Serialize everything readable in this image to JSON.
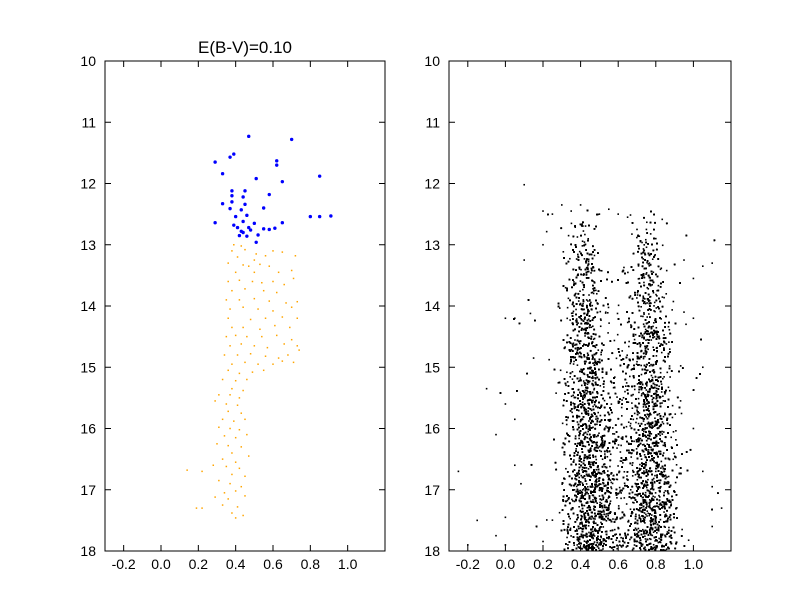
{
  "chart_data": [
    {
      "type": "scatter",
      "title": "E(B-V)=0.10",
      "xlim": [
        -0.3,
        1.2
      ],
      "ylim": [
        18,
        10
      ],
      "y_inverted": true,
      "xticks": [
        -0.2,
        0.0,
        0.2,
        0.4,
        0.6,
        0.8,
        1.0
      ],
      "xtick_labels": [
        "-0.2",
        "0.0",
        "0.2",
        "0.4",
        "0.6",
        "0.8",
        "1.0"
      ],
      "yticks": [
        10,
        11,
        12,
        13,
        14,
        15,
        16,
        17,
        18
      ],
      "ytick_labels": [
        "10",
        "11",
        "12",
        "13",
        "14",
        "15",
        "16",
        "17",
        "18"
      ],
      "grid": false,
      "series": [
        {
          "color": "#0000ff",
          "marker_size": 2.6,
          "points": [
            [
              0.47,
              11.23
            ],
            [
              0.7,
              11.28
            ],
            [
              0.39,
              11.52
            ],
            [
              0.37,
              11.57
            ],
            [
              0.29,
              11.65
            ],
            [
              0.62,
              11.63
            ],
            [
              0.62,
              11.7
            ],
            [
              0.33,
              11.84
            ],
            [
              0.51,
              11.92
            ],
            [
              0.65,
              11.97
            ],
            [
              0.85,
              11.88
            ],
            [
              0.38,
              12.12
            ],
            [
              0.45,
              12.12
            ],
            [
              0.38,
              12.2
            ],
            [
              0.44,
              12.22
            ],
            [
              0.58,
              12.18
            ],
            [
              0.38,
              12.3
            ],
            [
              0.33,
              12.33
            ],
            [
              0.45,
              12.34
            ],
            [
              0.55,
              12.4
            ],
            [
              0.37,
              12.41
            ],
            [
              0.43,
              12.43
            ],
            [
              0.4,
              12.54
            ],
            [
              0.46,
              12.52
            ],
            [
              0.8,
              12.54
            ],
            [
              0.85,
              12.54
            ],
            [
              0.91,
              12.53
            ],
            [
              0.29,
              12.64
            ],
            [
              0.44,
              12.62
            ],
            [
              0.5,
              12.65
            ],
            [
              0.65,
              12.64
            ],
            [
              0.39,
              12.68
            ],
            [
              0.41,
              12.72
            ],
            [
              0.47,
              12.72
            ],
            [
              0.55,
              12.74
            ],
            [
              0.58,
              12.75
            ],
            [
              0.61,
              12.73
            ],
            [
              0.43,
              12.78
            ],
            [
              0.44,
              12.8
            ],
            [
              0.48,
              12.76
            ],
            [
              0.52,
              12.84
            ],
            [
              0.51,
              12.96
            ],
            [
              0.42,
              12.85
            ],
            [
              0.46,
              12.86
            ]
          ]
        },
        {
          "color": "#ffa500",
          "marker_size": 1.5,
          "points": [
            [
              0.39,
              13.0
            ],
            [
              0.43,
              13.02
            ],
            [
              0.38,
              13.1
            ],
            [
              0.45,
              13.08
            ],
            [
              0.51,
              13.15
            ],
            [
              0.41,
              13.2
            ],
            [
              0.5,
              13.25
            ],
            [
              0.56,
              13.18
            ],
            [
              0.6,
              13.1
            ],
            [
              0.65,
              13.12
            ],
            [
              0.72,
              13.18
            ],
            [
              0.36,
              13.3
            ],
            [
              0.44,
              13.33
            ],
            [
              0.47,
              13.35
            ],
            [
              0.53,
              13.32
            ],
            [
              0.58,
              13.35
            ],
            [
              0.4,
              13.45
            ],
            [
              0.5,
              13.45
            ],
            [
              0.63,
              13.45
            ],
            [
              0.7,
              13.42
            ],
            [
              0.36,
              13.6
            ],
            [
              0.42,
              13.58
            ],
            [
              0.49,
              13.6
            ],
            [
              0.54,
              13.62
            ],
            [
              0.6,
              13.6
            ],
            [
              0.66,
              13.65
            ],
            [
              0.71,
              13.55
            ],
            [
              0.38,
              13.75
            ],
            [
              0.45,
              13.72
            ],
            [
              0.55,
              13.75
            ],
            [
              0.62,
              13.78
            ],
            [
              0.35,
              13.9
            ],
            [
              0.42,
              13.9
            ],
            [
              0.5,
              13.88
            ],
            [
              0.58,
              13.92
            ],
            [
              0.67,
              13.95
            ],
            [
              0.73,
              13.93
            ],
            [
              0.37,
              14.05
            ],
            [
              0.44,
              14.02
            ],
            [
              0.52,
              14.05
            ],
            [
              0.6,
              14.08
            ],
            [
              0.7,
              14.02
            ],
            [
              0.36,
              14.2
            ],
            [
              0.48,
              14.22
            ],
            [
              0.56,
              14.2
            ],
            [
              0.65,
              14.18
            ],
            [
              0.73,
              14.2
            ],
            [
              0.38,
              14.35
            ],
            [
              0.44,
              14.35
            ],
            [
              0.53,
              14.38
            ],
            [
              0.61,
              14.32
            ],
            [
              0.69,
              14.35
            ],
            [
              0.35,
              14.5
            ],
            [
              0.4,
              14.48
            ],
            [
              0.46,
              14.5
            ],
            [
              0.54,
              14.5
            ],
            [
              0.62,
              14.48
            ],
            [
              0.7,
              14.55
            ],
            [
              0.37,
              14.65
            ],
            [
              0.43,
              14.62
            ],
            [
              0.5,
              14.65
            ],
            [
              0.57,
              14.68
            ],
            [
              0.66,
              14.62
            ],
            [
              0.73,
              14.65
            ],
            [
              0.34,
              14.8
            ],
            [
              0.41,
              14.8
            ],
            [
              0.48,
              14.78
            ],
            [
              0.56,
              14.82
            ],
            [
              0.63,
              14.85
            ],
            [
              0.68,
              14.8
            ],
            [
              0.74,
              14.72
            ],
            [
              0.38,
              14.95
            ],
            [
              0.45,
              14.92
            ],
            [
              0.52,
              14.95
            ],
            [
              0.6,
              14.95
            ],
            [
              0.65,
              14.9
            ],
            [
              0.71,
              14.92
            ],
            [
              0.36,
              15.05
            ],
            [
              0.42,
              15.1
            ],
            [
              0.49,
              15.08
            ],
            [
              0.55,
              15.05
            ],
            [
              0.33,
              15.2
            ],
            [
              0.4,
              15.22
            ],
            [
              0.46,
              15.2
            ],
            [
              0.38,
              15.35
            ],
            [
              0.44,
              15.38
            ],
            [
              0.31,
              15.45
            ],
            [
              0.37,
              15.45
            ],
            [
              0.42,
              15.5
            ],
            [
              0.29,
              15.55
            ],
            [
              0.35,
              15.6
            ],
            [
              0.41,
              15.62
            ],
            [
              0.36,
              15.72
            ],
            [
              0.43,
              15.75
            ],
            [
              0.33,
              15.85
            ],
            [
              0.39,
              15.88
            ],
            [
              0.45,
              15.85
            ],
            [
              0.31,
              15.98
            ],
            [
              0.37,
              16.0
            ],
            [
              0.42,
              16.02
            ],
            [
              0.34,
              16.12
            ],
            [
              0.4,
              16.15
            ],
            [
              0.46,
              16.1
            ],
            [
              0.3,
              16.25
            ],
            [
              0.36,
              16.28
            ],
            [
              0.43,
              16.3
            ],
            [
              0.38,
              16.4
            ],
            [
              0.47,
              16.45
            ],
            [
              0.33,
              16.5
            ],
            [
              0.4,
              16.55
            ],
            [
              0.28,
              16.6
            ],
            [
              0.35,
              16.62
            ],
            [
              0.42,
              16.65
            ],
            [
              0.14,
              16.68
            ],
            [
              0.22,
              16.7
            ],
            [
              0.38,
              16.75
            ],
            [
              0.45,
              16.78
            ],
            [
              0.31,
              16.85
            ],
            [
              0.37,
              16.9
            ],
            [
              0.43,
              16.95
            ],
            [
              0.34,
              17.05
            ],
            [
              0.4,
              17.02
            ],
            [
              0.29,
              17.12
            ],
            [
              0.36,
              17.15
            ],
            [
              0.45,
              17.1
            ],
            [
              0.33,
              17.25
            ],
            [
              0.41,
              17.28
            ],
            [
              0.19,
              17.3
            ],
            [
              0.22,
              17.3
            ],
            [
              0.38,
              17.38
            ],
            [
              0.44,
              17.42
            ],
            [
              0.4,
              17.46
            ]
          ]
        }
      ]
    },
    {
      "type": "scatter",
      "title": "",
      "xlim": [
        -0.3,
        1.2
      ],
      "ylim": [
        18,
        10
      ],
      "y_inverted": true,
      "xticks": [
        -0.2,
        0.0,
        0.2,
        0.4,
        0.6,
        0.8,
        1.0
      ],
      "xtick_labels": [
        "-0.2",
        "0.0",
        "0.2",
        "0.4",
        "0.6",
        "0.8",
        "1.0"
      ],
      "yticks": [
        10,
        11,
        12,
        13,
        14,
        15,
        16,
        17,
        18
      ],
      "ytick_labels": [
        "10",
        "11",
        "12",
        "13",
        "14",
        "15",
        "16",
        "17",
        "18"
      ],
      "grid": false,
      "series": [
        {
          "color": "#000000",
          "marker_size": 1.6,
          "description_of_density": "dense cloud",
          "points": [
            [
              0.1,
              12.02
            ],
            [
              -0.15,
              17.5
            ],
            [
              -0.2,
              17.9
            ],
            [
              -0.25,
              16.7
            ],
            [
              -0.05,
              16.1
            ],
            [
              -0.1,
              15.35
            ],
            [
              0.0,
              14.2
            ],
            [
              0.05,
              14.2
            ],
            [
              0.1,
              13.25
            ],
            [
              0.2,
              13.0
            ],
            [
              0.2,
              12.45
            ],
            [
              0.25,
              12.5
            ],
            [
              0.3,
              12.35
            ],
            [
              0.35,
              12.45
            ],
            [
              0.4,
              12.35
            ],
            [
              0.5,
              12.5
            ],
            [
              0.55,
              12.42
            ],
            [
              0.6,
              12.5
            ],
            [
              0.65,
              12.55
            ],
            [
              0.7,
              12.75
            ],
            [
              0.75,
              12.75
            ],
            [
              0.8,
              12.9
            ],
            [
              0.95,
              13.25
            ],
            [
              1.0,
              13.55
            ],
            [
              1.05,
              13.35
            ],
            [
              1.1,
              13.3
            ],
            [
              0.95,
              14.1
            ],
            [
              1.0,
              14.2
            ],
            [
              1.05,
              15.0
            ],
            [
              1.0,
              16.0
            ],
            [
              1.05,
              16.7
            ],
            [
              1.1,
              16.95
            ],
            [
              1.15,
              17.3
            ],
            [
              1.1,
              17.6
            ],
            [
              0.0,
              15.6
            ],
            [
              0.05,
              15.85
            ],
            [
              0.15,
              14.85
            ],
            [
              0.05,
              16.6
            ],
            [
              0.0,
              17.45
            ],
            [
              -0.05,
              17.75
            ],
            [
              0.0,
              17.9
            ]
          ]
        }
      ]
    }
  ]
}
